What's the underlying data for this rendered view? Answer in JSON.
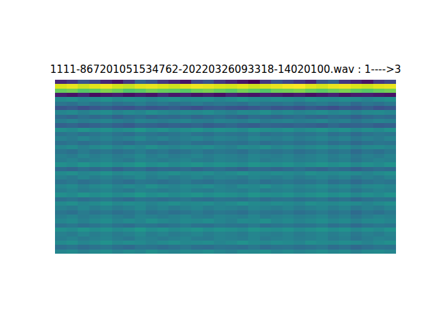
{
  "chart_data": {
    "type": "heatmap",
    "title": "1111-867201051534762-20220326093318-14020100.wav : 1---->3",
    "tick_labels": false,
    "cells": [
      [
        0.15,
        0.2,
        0.3,
        0.25,
        0.15,
        0.1,
        0.2,
        0.35,
        0.3,
        0.2,
        0.15,
        0.1,
        0.25,
        0.3,
        0.2,
        0.15,
        0.1,
        0.05,
        0.2,
        0.3,
        0.25,
        0.2,
        0.15,
        0.3,
        0.35,
        0.2,
        0.15,
        0.1,
        0.2,
        0.25
      ],
      [
        0.95,
        0.97,
        0.93,
        0.96,
        0.98,
        0.94,
        0.92,
        0.96,
        0.97,
        0.95,
        0.93,
        0.96,
        0.98,
        0.97,
        0.95,
        0.94,
        0.96,
        0.93,
        0.95,
        0.97,
        0.99,
        1.0,
        0.96,
        0.94,
        0.97,
        0.98,
        0.95,
        0.93,
        0.96,
        0.97
      ],
      [
        0.78,
        0.8,
        0.75,
        0.77,
        0.82,
        0.79,
        0.74,
        0.76,
        0.8,
        0.78,
        0.77,
        0.75,
        0.79,
        0.81,
        0.78,
        0.76,
        0.8,
        0.77,
        0.74,
        0.79,
        0.8,
        0.82,
        0.78,
        0.76,
        0.79,
        0.81,
        0.77,
        0.75,
        0.78,
        0.8
      ],
      [
        0.12,
        0.1,
        0.14,
        0.08,
        0.11,
        0.13,
        0.09,
        0.12,
        0.1,
        0.15,
        0.11,
        0.13,
        0.1,
        0.12,
        0.09,
        0.14,
        0.11,
        0.1,
        0.13,
        0.12,
        0.1,
        0.12,
        0.09,
        0.11,
        0.14,
        0.1,
        0.12,
        0.13,
        0.11,
        0.1
      ],
      [
        0.5,
        0.52,
        0.48,
        0.5,
        0.53,
        0.49,
        0.51,
        0.5,
        0.47,
        0.5,
        0.52,
        0.49,
        0.5,
        0.51,
        0.48,
        0.5,
        0.53,
        0.5,
        0.49,
        0.51,
        0.5,
        0.48,
        0.52,
        0.5,
        0.49,
        0.51,
        0.5,
        0.47,
        0.5,
        0.52
      ],
      [
        0.42,
        0.4,
        0.44,
        0.41,
        0.43,
        0.4,
        0.42,
        0.45,
        0.41,
        0.43,
        0.4,
        0.42,
        0.44,
        0.41,
        0.43,
        0.42,
        0.4,
        0.44,
        0.42,
        0.41,
        0.43,
        0.4,
        0.42,
        0.44,
        0.41,
        0.43,
        0.38,
        0.42,
        0.4,
        0.43
      ],
      [
        0.3,
        0.32,
        0.28,
        0.31,
        0.33,
        0.3,
        0.29,
        0.32,
        0.3,
        0.31,
        0.33,
        0.3,
        0.28,
        0.31,
        0.32,
        0.3,
        0.29,
        0.31,
        0.33,
        0.3,
        0.31,
        0.29,
        0.32,
        0.3,
        0.28,
        0.31,
        0.3,
        0.33,
        0.29,
        0.31
      ],
      [
        0.48,
        0.5,
        0.46,
        0.49,
        0.51,
        0.47,
        0.5,
        0.48,
        0.52,
        0.49,
        0.47,
        0.5,
        0.49,
        0.51,
        0.48,
        0.46,
        0.5,
        0.49,
        0.52,
        0.48,
        0.5,
        0.47,
        0.49,
        0.51,
        0.48,
        0.5,
        0.46,
        0.49,
        0.5,
        0.48
      ],
      [
        0.38,
        0.36,
        0.4,
        0.37,
        0.39,
        0.35,
        0.38,
        0.4,
        0.36,
        0.38,
        0.37,
        0.39,
        0.36,
        0.38,
        0.4,
        0.37,
        0.35,
        0.39,
        0.38,
        0.36,
        0.38,
        0.4,
        0.37,
        0.36,
        0.39,
        0.38,
        0.34,
        0.37,
        0.39,
        0.38
      ],
      [
        0.45,
        0.47,
        0.44,
        0.46,
        0.48,
        0.45,
        0.43,
        0.47,
        0.46,
        0.44,
        0.46,
        0.48,
        0.45,
        0.44,
        0.47,
        0.46,
        0.45,
        0.48,
        0.44,
        0.46,
        0.47,
        0.45,
        0.46,
        0.48,
        0.44,
        0.46,
        0.42,
        0.45,
        0.47,
        0.46
      ],
      [
        0.34,
        0.36,
        0.33,
        0.35,
        0.37,
        0.34,
        0.32,
        0.36,
        0.35,
        0.33,
        0.35,
        0.34,
        0.36,
        0.33,
        0.35,
        0.37,
        0.34,
        0.33,
        0.36,
        0.35,
        0.34,
        0.36,
        0.35,
        0.33,
        0.37,
        0.34,
        0.35,
        0.36,
        0.33,
        0.34
      ],
      [
        0.52,
        0.5,
        0.54,
        0.51,
        0.53,
        0.5,
        0.52,
        0.55,
        0.51,
        0.53,
        0.5,
        0.52,
        0.54,
        0.51,
        0.53,
        0.52,
        0.5,
        0.54,
        0.52,
        0.51,
        0.53,
        0.5,
        0.52,
        0.54,
        0.51,
        0.53,
        0.49,
        0.52,
        0.5,
        0.53
      ],
      [
        0.41,
        0.43,
        0.4,
        0.42,
        0.44,
        0.41,
        0.39,
        0.43,
        0.42,
        0.4,
        0.42,
        0.44,
        0.41,
        0.4,
        0.43,
        0.42,
        0.41,
        0.44,
        0.4,
        0.42,
        0.43,
        0.41,
        0.42,
        0.44,
        0.4,
        0.42,
        0.38,
        0.41,
        0.43,
        0.42
      ],
      [
        0.46,
        0.44,
        0.48,
        0.45,
        0.47,
        0.44,
        0.46,
        0.49,
        0.45,
        0.47,
        0.44,
        0.46,
        0.48,
        0.45,
        0.47,
        0.46,
        0.44,
        0.48,
        0.46,
        0.45,
        0.47,
        0.44,
        0.46,
        0.48,
        0.45,
        0.47,
        0.43,
        0.46,
        0.44,
        0.47
      ],
      [
        0.4,
        0.42,
        0.39,
        0.41,
        0.43,
        0.4,
        0.38,
        0.42,
        0.41,
        0.39,
        0.41,
        0.43,
        0.4,
        0.39,
        0.42,
        0.41,
        0.4,
        0.43,
        0.39,
        0.41,
        0.42,
        0.4,
        0.41,
        0.43,
        0.39,
        0.41,
        0.37,
        0.4,
        0.42,
        0.41
      ],
      [
        0.48,
        0.5,
        0.46,
        0.49,
        0.51,
        0.47,
        0.5,
        0.48,
        0.52,
        0.49,
        0.47,
        0.5,
        0.49,
        0.51,
        0.48,
        0.46,
        0.5,
        0.49,
        0.52,
        0.48,
        0.5,
        0.47,
        0.49,
        0.51,
        0.48,
        0.5,
        0.46,
        0.49,
        0.5,
        0.48
      ],
      [
        0.42,
        0.4,
        0.44,
        0.41,
        0.43,
        0.4,
        0.42,
        0.45,
        0.41,
        0.43,
        0.4,
        0.42,
        0.44,
        0.41,
        0.43,
        0.42,
        0.4,
        0.44,
        0.42,
        0.41,
        0.43,
        0.4,
        0.42,
        0.44,
        0.41,
        0.43,
        0.38,
        0.42,
        0.4,
        0.43
      ],
      [
        0.46,
        0.44,
        0.48,
        0.45,
        0.47,
        0.44,
        0.46,
        0.49,
        0.45,
        0.47,
        0.44,
        0.46,
        0.48,
        0.45,
        0.47,
        0.46,
        0.44,
        0.48,
        0.46,
        0.45,
        0.47,
        0.44,
        0.46,
        0.48,
        0.45,
        0.47,
        0.43,
        0.46,
        0.44,
        0.47
      ],
      [
        0.45,
        0.47,
        0.44,
        0.46,
        0.48,
        0.45,
        0.43,
        0.47,
        0.46,
        0.44,
        0.46,
        0.48,
        0.45,
        0.44,
        0.47,
        0.46,
        0.45,
        0.48,
        0.44,
        0.46,
        0.47,
        0.45,
        0.46,
        0.48,
        0.44,
        0.46,
        0.42,
        0.45,
        0.47,
        0.46
      ],
      [
        0.52,
        0.5,
        0.54,
        0.51,
        0.53,
        0.5,
        0.52,
        0.55,
        0.51,
        0.53,
        0.5,
        0.52,
        0.54,
        0.51,
        0.53,
        0.52,
        0.5,
        0.54,
        0.52,
        0.51,
        0.53,
        0.5,
        0.52,
        0.54,
        0.51,
        0.53,
        0.49,
        0.52,
        0.5,
        0.53
      ],
      [
        0.38,
        0.36,
        0.4,
        0.37,
        0.39,
        0.35,
        0.38,
        0.4,
        0.36,
        0.38,
        0.37,
        0.39,
        0.36,
        0.38,
        0.4,
        0.37,
        0.35,
        0.39,
        0.38,
        0.36,
        0.38,
        0.4,
        0.37,
        0.36,
        0.39,
        0.38,
        0.34,
        0.37,
        0.39,
        0.38
      ],
      [
        0.5,
        0.52,
        0.48,
        0.5,
        0.53,
        0.49,
        0.51,
        0.5,
        0.47,
        0.5,
        0.52,
        0.49,
        0.5,
        0.51,
        0.48,
        0.5,
        0.53,
        0.5,
        0.49,
        0.51,
        0.5,
        0.48,
        0.52,
        0.5,
        0.49,
        0.51,
        0.5,
        0.47,
        0.5,
        0.52
      ],
      [
        0.46,
        0.44,
        0.48,
        0.45,
        0.47,
        0.44,
        0.46,
        0.49,
        0.45,
        0.47,
        0.44,
        0.46,
        0.48,
        0.45,
        0.47,
        0.46,
        0.44,
        0.48,
        0.46,
        0.45,
        0.47,
        0.44,
        0.46,
        0.48,
        0.45,
        0.47,
        0.43,
        0.46,
        0.44,
        0.47
      ],
      [
        0.41,
        0.43,
        0.4,
        0.42,
        0.44,
        0.41,
        0.39,
        0.43,
        0.42,
        0.4,
        0.42,
        0.44,
        0.41,
        0.4,
        0.43,
        0.42,
        0.41,
        0.44,
        0.4,
        0.42,
        0.43,
        0.41,
        0.42,
        0.44,
        0.4,
        0.42,
        0.38,
        0.41,
        0.43,
        0.42
      ],
      [
        0.48,
        0.5,
        0.46,
        0.49,
        0.51,
        0.47,
        0.5,
        0.48,
        0.52,
        0.49,
        0.47,
        0.5,
        0.49,
        0.51,
        0.48,
        0.46,
        0.5,
        0.49,
        0.52,
        0.48,
        0.5,
        0.47,
        0.49,
        0.51,
        0.48,
        0.5,
        0.46,
        0.49,
        0.5,
        0.48
      ],
      [
        0.45,
        0.47,
        0.44,
        0.46,
        0.48,
        0.45,
        0.43,
        0.47,
        0.46,
        0.44,
        0.46,
        0.48,
        0.45,
        0.44,
        0.47,
        0.46,
        0.45,
        0.48,
        0.44,
        0.46,
        0.47,
        0.45,
        0.46,
        0.48,
        0.44,
        0.46,
        0.42,
        0.45,
        0.47,
        0.46
      ],
      [
        0.52,
        0.5,
        0.54,
        0.51,
        0.53,
        0.5,
        0.52,
        0.55,
        0.51,
        0.53,
        0.5,
        0.52,
        0.54,
        0.51,
        0.53,
        0.52,
        0.5,
        0.54,
        0.52,
        0.51,
        0.53,
        0.5,
        0.52,
        0.54,
        0.51,
        0.53,
        0.49,
        0.52,
        0.5,
        0.53
      ],
      [
        0.4,
        0.42,
        0.39,
        0.41,
        0.43,
        0.4,
        0.38,
        0.42,
        0.41,
        0.39,
        0.41,
        0.43,
        0.4,
        0.39,
        0.42,
        0.41,
        0.4,
        0.43,
        0.39,
        0.41,
        0.42,
        0.4,
        0.41,
        0.43,
        0.39,
        0.41,
        0.37,
        0.4,
        0.42,
        0.41
      ],
      [
        0.5,
        0.52,
        0.48,
        0.5,
        0.53,
        0.49,
        0.51,
        0.5,
        0.47,
        0.5,
        0.52,
        0.49,
        0.5,
        0.51,
        0.48,
        0.5,
        0.53,
        0.5,
        0.49,
        0.51,
        0.5,
        0.48,
        0.52,
        0.5,
        0.49,
        0.51,
        0.5,
        0.47,
        0.5,
        0.52
      ],
      [
        0.46,
        0.44,
        0.48,
        0.45,
        0.47,
        0.44,
        0.46,
        0.49,
        0.45,
        0.47,
        0.44,
        0.46,
        0.48,
        0.45,
        0.47,
        0.46,
        0.44,
        0.48,
        0.46,
        0.45,
        0.47,
        0.44,
        0.46,
        0.48,
        0.45,
        0.47,
        0.43,
        0.46,
        0.44,
        0.47
      ],
      [
        0.42,
        0.4,
        0.44,
        0.41,
        0.43,
        0.4,
        0.42,
        0.45,
        0.41,
        0.43,
        0.4,
        0.42,
        0.44,
        0.41,
        0.43,
        0.42,
        0.4,
        0.44,
        0.42,
        0.41,
        0.43,
        0.4,
        0.42,
        0.44,
        0.41,
        0.43,
        0.38,
        0.42,
        0.4,
        0.43
      ],
      [
        0.45,
        0.47,
        0.44,
        0.46,
        0.48,
        0.45,
        0.43,
        0.47,
        0.46,
        0.44,
        0.46,
        0.48,
        0.45,
        0.44,
        0.47,
        0.46,
        0.45,
        0.48,
        0.44,
        0.46,
        0.47,
        0.45,
        0.46,
        0.48,
        0.44,
        0.46,
        0.42,
        0.45,
        0.47,
        0.46
      ],
      [
        0.48,
        0.5,
        0.46,
        0.49,
        0.51,
        0.47,
        0.5,
        0.48,
        0.52,
        0.49,
        0.47,
        0.5,
        0.49,
        0.51,
        0.48,
        0.46,
        0.5,
        0.49,
        0.52,
        0.48,
        0.5,
        0.47,
        0.49,
        0.51,
        0.48,
        0.5,
        0.46,
        0.49,
        0.5,
        0.48
      ],
      [
        0.41,
        0.43,
        0.4,
        0.42,
        0.44,
        0.41,
        0.39,
        0.43,
        0.42,
        0.4,
        0.42,
        0.44,
        0.41,
        0.4,
        0.43,
        0.42,
        0.41,
        0.44,
        0.4,
        0.42,
        0.43,
        0.41,
        0.42,
        0.44,
        0.4,
        0.42,
        0.38,
        0.41,
        0.43,
        0.42
      ],
      [
        0.52,
        0.5,
        0.54,
        0.51,
        0.53,
        0.5,
        0.52,
        0.55,
        0.51,
        0.53,
        0.5,
        0.52,
        0.54,
        0.51,
        0.53,
        0.52,
        0.5,
        0.54,
        0.52,
        0.51,
        0.53,
        0.5,
        0.52,
        0.54,
        0.51,
        0.53,
        0.49,
        0.52,
        0.5,
        0.53
      ],
      [
        0.46,
        0.44,
        0.48,
        0.45,
        0.47,
        0.44,
        0.46,
        0.49,
        0.45,
        0.47,
        0.44,
        0.46,
        0.48,
        0.45,
        0.47,
        0.46,
        0.44,
        0.48,
        0.46,
        0.45,
        0.47,
        0.44,
        0.46,
        0.48,
        0.45,
        0.47,
        0.43,
        0.46,
        0.44,
        0.47
      ],
      [
        0.45,
        0.47,
        0.44,
        0.46,
        0.48,
        0.45,
        0.43,
        0.47,
        0.46,
        0.44,
        0.46,
        0.48,
        0.45,
        0.44,
        0.47,
        0.46,
        0.45,
        0.48,
        0.44,
        0.46,
        0.47,
        0.45,
        0.46,
        0.48,
        0.44,
        0.46,
        0.42,
        0.45,
        0.47,
        0.46
      ],
      [
        0.5,
        0.52,
        0.48,
        0.5,
        0.53,
        0.49,
        0.51,
        0.5,
        0.47,
        0.5,
        0.52,
        0.49,
        0.5,
        0.51,
        0.48,
        0.5,
        0.53,
        0.5,
        0.49,
        0.51,
        0.5,
        0.48,
        0.52,
        0.5,
        0.49,
        0.51,
        0.5,
        0.47,
        0.5,
        0.52
      ],
      [
        0.4,
        0.42,
        0.39,
        0.41,
        0.43,
        0.4,
        0.38,
        0.42,
        0.41,
        0.39,
        0.41,
        0.43,
        0.4,
        0.39,
        0.42,
        0.41,
        0.4,
        0.43,
        0.39,
        0.41,
        0.42,
        0.4,
        0.41,
        0.43,
        0.39,
        0.41,
        0.37,
        0.4,
        0.42,
        0.41
      ],
      [
        0.48,
        0.5,
        0.46,
        0.49,
        0.51,
        0.47,
        0.5,
        0.48,
        0.52,
        0.49,
        0.47,
        0.5,
        0.49,
        0.51,
        0.48,
        0.46,
        0.5,
        0.49,
        0.52,
        0.48,
        0.5,
        0.47,
        0.49,
        0.51,
        0.48,
        0.5,
        0.46,
        0.49,
        0.5,
        0.48
      ]
    ]
  }
}
